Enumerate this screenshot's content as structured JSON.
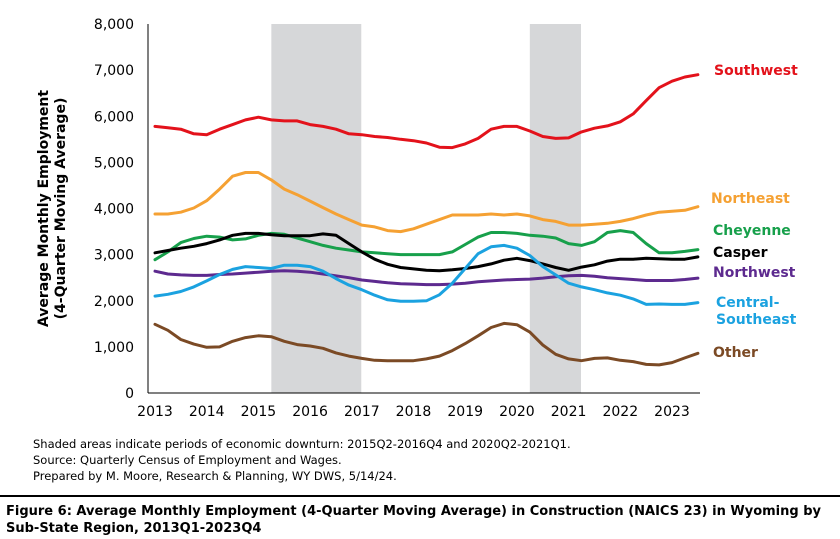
{
  "chart_data": {
    "type": "line",
    "title": "",
    "xlabel": "",
    "ylabel": [
      "Average Monthly Employment",
      "(4-Quarter Moving Average)"
    ],
    "ylim": [
      0,
      8000
    ],
    "yticks": [
      0,
      1000,
      2000,
      3000,
      4000,
      5000,
      6000,
      7000,
      8000
    ],
    "ytick_labels": [
      "0",
      "1,000",
      "2,000",
      "3,000",
      "4,000",
      "5,000",
      "6,000",
      "7,000",
      "8,000"
    ],
    "xlim": [
      2013,
      2023.75
    ],
    "xticks": [
      2013,
      2014,
      2015,
      2016,
      2017,
      2018,
      2019,
      2020,
      2021,
      2022,
      2023
    ],
    "xtick_labels": [
      "2013",
      "2014",
      "2015",
      "2016",
      "2017",
      "2018",
      "2019",
      "2020",
      "2021",
      "2022",
      "2023"
    ],
    "grid": false,
    "legend": "inline labels at line ends",
    "shaded_periods": [
      {
        "start": 2015.25,
        "end": 2016.99
      },
      {
        "start": 2020.25,
        "end": 2021.24
      }
    ],
    "x": [
      2013,
      2013.25,
      2013.5,
      2013.75,
      2014,
      2014.25,
      2014.5,
      2014.75,
      2015,
      2015.25,
      2015.5,
      2015.75,
      2016,
      2016.25,
      2016.5,
      2016.75,
      2017,
      2017.25,
      2017.5,
      2017.75,
      2018,
      2018.25,
      2018.5,
      2018.75,
      2019,
      2019.25,
      2019.5,
      2019.75,
      2020,
      2020.25,
      2020.5,
      2020.75,
      2021,
      2021.25,
      2021.5,
      2021.75,
      2022,
      2022.25,
      2022.5,
      2022.75,
      2023,
      2023.25,
      2023.5
    ],
    "series": [
      {
        "name": "Southwest",
        "color": "#e3121b",
        "values": [
          5780,
          5750,
          5720,
          5620,
          5600,
          5720,
          5820,
          5920,
          5980,
          5920,
          5900,
          5900,
          5820,
          5780,
          5720,
          5620,
          5600,
          5560,
          5540,
          5500,
          5470,
          5420,
          5330,
          5320,
          5400,
          5520,
          5720,
          5780,
          5780,
          5680,
          5560,
          5520,
          5530,
          5660,
          5740,
          5790,
          5880,
          6050,
          6340,
          6620,
          6760,
          6850,
          6900
        ]
      },
      {
        "name": "Northeast",
        "color": "#f5a133",
        "values": [
          3880,
          3880,
          3920,
          4010,
          4170,
          4420,
          4700,
          4780,
          4780,
          4620,
          4420,
          4300,
          4160,
          4020,
          3880,
          3760,
          3640,
          3600,
          3520,
          3500,
          3560,
          3660,
          3760,
          3860,
          3860,
          3860,
          3880,
          3860,
          3880,
          3840,
          3760,
          3720,
          3640,
          3640,
          3660,
          3680,
          3720,
          3780,
          3860,
          3920,
          3940,
          3960,
          4040
        ]
      },
      {
        "name": "Cheyenne",
        "color": "#17a04b",
        "values": [
          2890,
          3060,
          3260,
          3350,
          3400,
          3380,
          3320,
          3340,
          3420,
          3460,
          3440,
          3360,
          3280,
          3200,
          3140,
          3100,
          3060,
          3040,
          3020,
          3000,
          3000,
          3000,
          3000,
          3060,
          3220,
          3380,
          3480,
          3480,
          3460,
          3420,
          3400,
          3360,
          3240,
          3200,
          3280,
          3480,
          3520,
          3480,
          3240,
          3040,
          3040,
          3070,
          3110
        ]
      },
      {
        "name": "Casper",
        "color": "#000000",
        "values": [
          3040,
          3090,
          3140,
          3180,
          3240,
          3320,
          3420,
          3460,
          3460,
          3430,
          3410,
          3410,
          3410,
          3450,
          3420,
          3240,
          3060,
          2900,
          2790,
          2720,
          2690,
          2660,
          2650,
          2670,
          2700,
          2740,
          2800,
          2880,
          2920,
          2870,
          2800,
          2720,
          2660,
          2730,
          2780,
          2860,
          2900,
          2900,
          2920,
          2910,
          2900,
          2900,
          2950
        ]
      },
      {
        "name": "Northwest",
        "color": "#5d2a8f",
        "values": [
          2640,
          2580,
          2560,
          2550,
          2550,
          2570,
          2580,
          2600,
          2620,
          2640,
          2650,
          2640,
          2620,
          2580,
          2540,
          2500,
          2450,
          2420,
          2390,
          2370,
          2360,
          2350,
          2350,
          2360,
          2380,
          2410,
          2430,
          2450,
          2460,
          2470,
          2490,
          2520,
          2540,
          2550,
          2530,
          2500,
          2480,
          2460,
          2440,
          2440,
          2440,
          2460,
          2490
        ]
      },
      {
        "name": "Central-Southeast",
        "color": "#1ba2e0",
        "values": [
          2100,
          2140,
          2200,
          2300,
          2430,
          2570,
          2680,
          2740,
          2720,
          2700,
          2770,
          2770,
          2740,
          2640,
          2480,
          2340,
          2240,
          2120,
          2020,
          1990,
          1990,
          2000,
          2130,
          2380,
          2700,
          3020,
          3170,
          3200,
          3140,
          2980,
          2740,
          2560,
          2380,
          2300,
          2240,
          2170,
          2120,
          2040,
          1920,
          1930,
          1920,
          1920,
          1960
        ]
      },
      {
        "name": "Other",
        "color": "#7b4a25",
        "values": [
          1490,
          1360,
          1160,
          1060,
          990,
          1000,
          1120,
          1200,
          1240,
          1220,
          1120,
          1050,
          1020,
          970,
          870,
          800,
          750,
          710,
          700,
          700,
          700,
          740,
          800,
          920,
          1070,
          1240,
          1420,
          1510,
          1480,
          1320,
          1040,
          840,
          740,
          700,
          750,
          760,
          710,
          680,
          620,
          610,
          660,
          760,
          860
        ]
      }
    ],
    "series_labels": [
      {
        "series": "Southwest",
        "lines": [
          "Southwest"
        ],
        "color": "#e3121b"
      },
      {
        "series": "Northeast",
        "lines": [
          "Northeast"
        ],
        "color": "#f5a133"
      },
      {
        "series": "Cheyenne",
        "lines": [
          "Cheyenne"
        ],
        "color": "#17a04b"
      },
      {
        "series": "Casper",
        "lines": [
          "Casper"
        ],
        "color": "#000000"
      },
      {
        "series": "Northwest",
        "lines": [
          "Northwest"
        ],
        "color": "#5d2a8f"
      },
      {
        "series": "Central-Southeast",
        "lines": [
          "Central-",
          "Southeast"
        ],
        "color": "#1ba2e0"
      },
      {
        "series": "Other",
        "lines": [
          "Other"
        ],
        "color": "#7b4a25"
      }
    ]
  },
  "notes": [
    "Shaded areas indicate periods of economic downturn: 2015Q2-2016Q4 and 2020Q2-2021Q1.",
    "Source: Quarterly Census of Employment and Wages.",
    "Prepared by M. Moore, Research & Planning, WY DWS, 5/14/24."
  ],
  "caption": "Figure 6: Average Monthly Employment (4-Quarter Moving Average) in Construction (NAICS 23) in Wyoming by Sub-State Region, 2013Q1-2023Q4"
}
